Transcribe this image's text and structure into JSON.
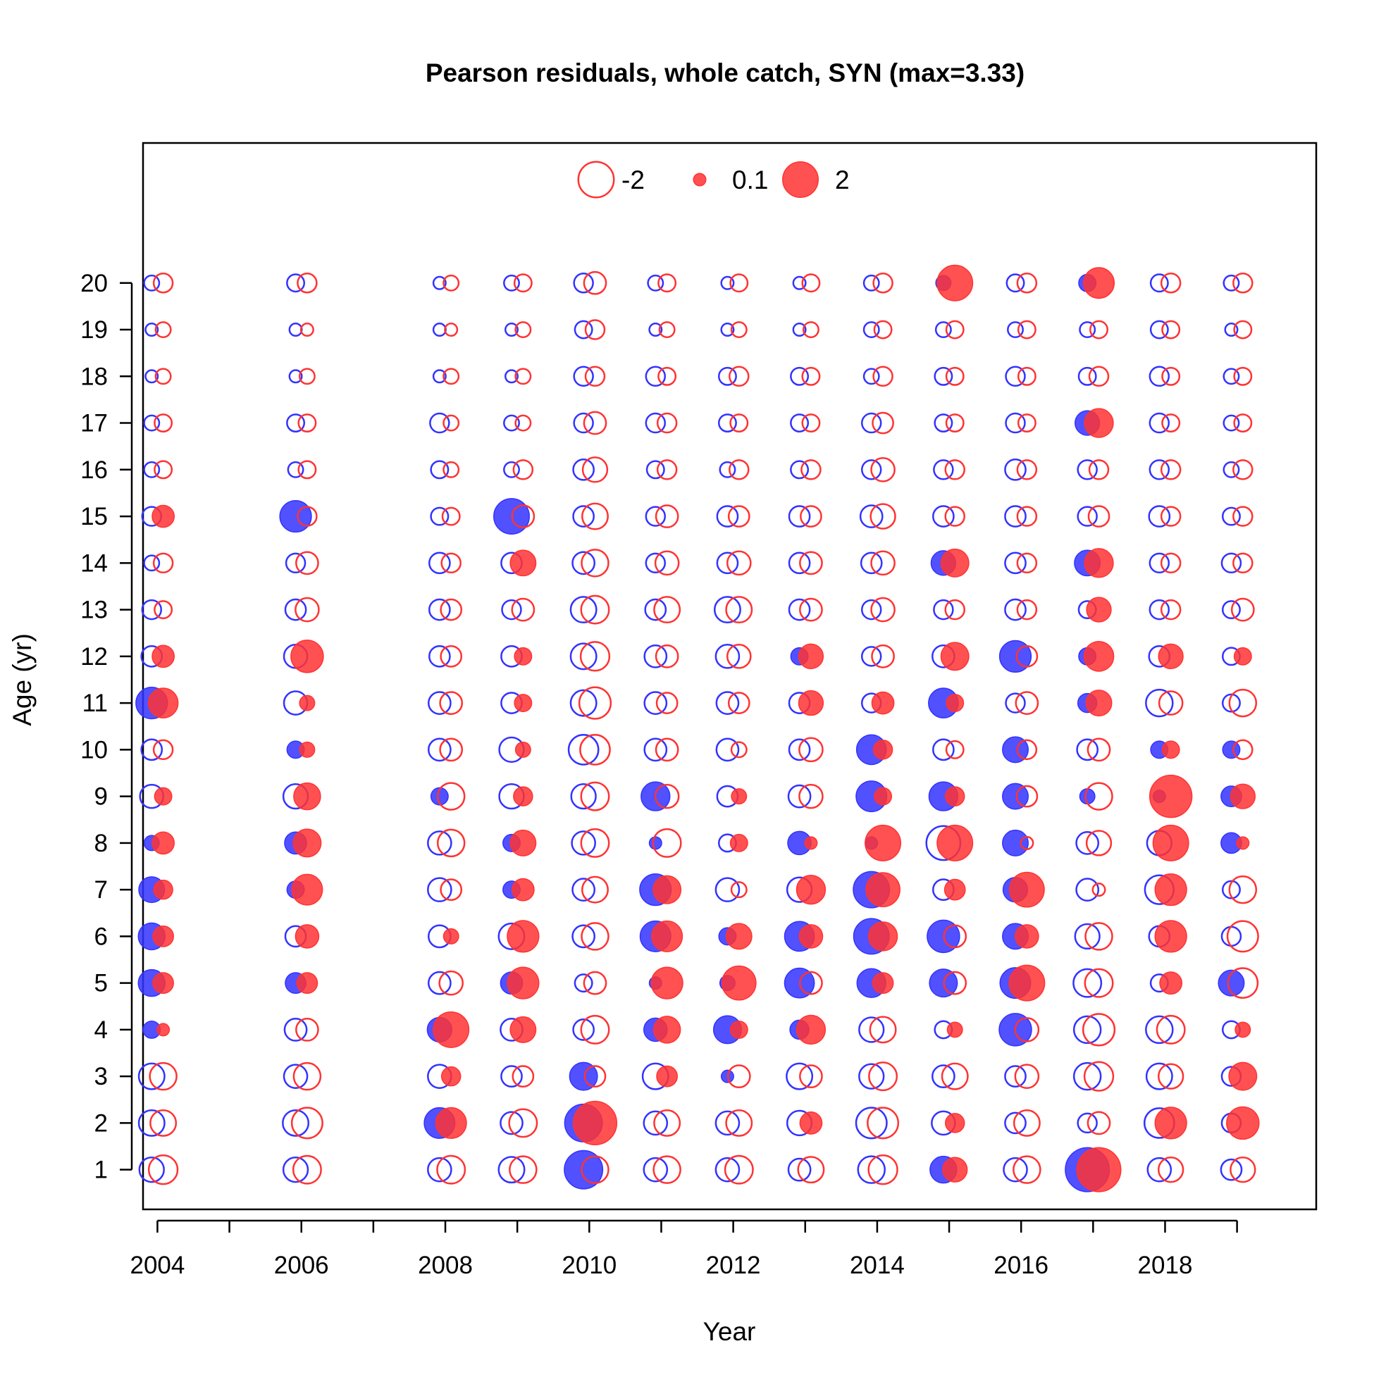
{
  "chart_data": {
    "type": "scatter",
    "subtype": "bubble",
    "title": "Pearson residuals, whole catch, SYN (max=3.33)",
    "xlabel": "Year",
    "ylabel": "Age (yr)",
    "xlim": [
      2003.8,
      2020.1
    ],
    "ylim": [
      0.15,
      23.0
    ],
    "x_ticks": [
      2004,
      2005,
      2006,
      2007,
      2008,
      2009,
      2010,
      2011,
      2012,
      2013,
      2014,
      2015,
      2016,
      2017,
      2018,
      2019
    ],
    "x_tick_labels": [
      "2004",
      "",
      "2006",
      "",
      "2008",
      "",
      "2010",
      "",
      "2012",
      "",
      "2014",
      "",
      "2016",
      "",
      "2018",
      ""
    ],
    "y_ticks": [
      1,
      2,
      3,
      4,
      5,
      6,
      7,
      8,
      9,
      10,
      11,
      12,
      13,
      14,
      15,
      16,
      17,
      18,
      19,
      20
    ],
    "grid": false,
    "max_residual": 3.33,
    "legend": {
      "placement": "top-center",
      "entries": [
        {
          "label": "-2",
          "value": -2,
          "filled": false
        },
        {
          "label": "0.1",
          "value": 0.1,
          "filled": true
        },
        {
          "label": "2",
          "value": 2,
          "filled": true
        }
      ]
    },
    "colors": {
      "observed": "#3333ff",
      "model": "#ff3333"
    },
    "years": [
      2004,
      2006,
      2008,
      2009,
      2010,
      2011,
      2012,
      2013,
      2014,
      2015,
      2016,
      2017,
      2018,
      2019
    ],
    "ages": [
      1,
      2,
      3,
      4,
      5,
      6,
      7,
      8,
      9,
      10,
      11,
      12,
      13,
      14,
      15,
      16,
      17,
      18,
      19,
      20
    ],
    "series": [
      {
        "name": "observed",
        "x_offset": -0.08,
        "residuals": [
          [
            -0.8,
            -0.9,
            -0.9,
            0.3,
            1.0,
            1.0,
            0.9,
            0.2,
            -0.7,
            -0.5,
            1.5,
            -0.5,
            -0.4,
            -0.2,
            -0.4,
            -0.2,
            -0.2,
            -0.1,
            -0.1,
            -0.2
          ],
          [
            -0.8,
            -0.9,
            -0.7,
            -0.6,
            0.5,
            -0.5,
            0.3,
            0.6,
            -0.8,
            0.3,
            -0.7,
            -0.7,
            -0.5,
            -0.4,
            1.5,
            -0.2,
            -0.3,
            -0.1,
            -0.1,
            -0.3
          ],
          [
            -0.7,
            1.4,
            -0.7,
            0.8,
            -0.6,
            -0.6,
            -0.7,
            -0.7,
            0.3,
            -0.6,
            -0.6,
            -0.5,
            -0.5,
            -0.5,
            -0.3,
            -0.3,
            -0.4,
            -0.1,
            -0.1,
            -0.1
          ],
          [
            -0.9,
            -0.6,
            -0.5,
            -0.6,
            0.6,
            -0.9,
            0.3,
            0.3,
            -0.8,
            -0.8,
            -0.5,
            -0.5,
            -0.4,
            -0.5,
            2.0,
            -0.2,
            -0.2,
            -0.1,
            -0.1,
            -0.2
          ],
          [
            2.4,
            2.3,
            1.1,
            -0.5,
            -0.3,
            -0.6,
            -0.6,
            -0.7,
            -0.8,
            -1.3,
            -0.9,
            -0.9,
            -0.9,
            -0.6,
            -0.5,
            -0.5,
            -0.4,
            -0.4,
            -0.3,
            -0.4
          ],
          [
            -0.7,
            -0.7,
            -0.9,
            0.7,
            0.1,
            1.4,
            1.5,
            0.1,
            1.2,
            -0.6,
            -0.6,
            -0.6,
            -0.5,
            -0.4,
            -0.4,
            -0.3,
            -0.4,
            -0.4,
            -0.1,
            -0.2
          ],
          [
            -0.7,
            -0.7,
            0.1,
            1.1,
            0.2,
            0.3,
            -0.7,
            -0.3,
            -0.5,
            -0.6,
            -0.6,
            -0.7,
            -0.9,
            -0.5,
            -0.5,
            -0.2,
            -0.3,
            -0.3,
            -0.1,
            -0.1
          ],
          [
            -0.6,
            -0.8,
            -0.9,
            0.4,
            1.3,
            1.3,
            -0.8,
            0.7,
            -0.6,
            -0.5,
            -0.5,
            0.3,
            -0.5,
            -0.5,
            -0.5,
            -0.3,
            -0.3,
            -0.3,
            -0.1,
            -0.1
          ],
          [
            -1.0,
            -1.4,
            -0.8,
            -0.8,
            1.2,
            2.0,
            2.1,
            0.1,
            1.4,
            1.3,
            -0.4,
            -0.4,
            -0.4,
            -0.5,
            -0.6,
            -0.4,
            -0.4,
            -0.2,
            -0.2,
            -0.2
          ],
          [
            1.0,
            -0.7,
            -0.6,
            -0.3,
            1.1,
            1.6,
            -0.5,
            -1.8,
            1.2,
            -0.5,
            1.3,
            -0.6,
            -0.4,
            0.8,
            -0.5,
            -0.4,
            -0.3,
            -0.3,
            -0.2,
            0.2
          ],
          [
            -0.7,
            -0.5,
            -0.5,
            1.6,
            1.4,
            0.9,
            0.8,
            0.9,
            0.9,
            0.9,
            -0.4,
            1.5,
            -0.5,
            -0.5,
            -0.5,
            -0.5,
            -0.4,
            -0.4,
            -0.2,
            -0.3
          ],
          [
            3.3,
            -0.4,
            -1.0,
            -1.0,
            -1.1,
            -0.8,
            -0.6,
            -0.6,
            0.2,
            -0.5,
            0.4,
            0.3,
            -0.3,
            0.9,
            -0.4,
            -0.4,
            0.8,
            -0.3,
            -0.2,
            0.3
          ],
          [
            -0.7,
            -1.3,
            -0.9,
            -1.0,
            -0.3,
            -0.5,
            -1.2,
            -0.8,
            0.1,
            0.3,
            -1.0,
            -0.5,
            -0.4,
            -0.4,
            -0.5,
            -0.4,
            -0.4,
            -0.4,
            -0.3,
            -0.3
          ],
          [
            -0.5,
            -0.4,
            -0.4,
            -0.3,
            0.9,
            -0.4,
            -0.3,
            0.5,
            0.5,
            0.3,
            -0.3,
            -0.3,
            -0.3,
            -0.4,
            -0.3,
            -0.2,
            -0.2,
            -0.2,
            -0.1,
            -0.2
          ]
        ]
      },
      {
        "name": "model",
        "x_offset": 0.08,
        "residuals": [
          [
            -1.2,
            -0.9,
            -1.0,
            0.1,
            0.5,
            0.5,
            0.4,
            0.6,
            0.3,
            -0.4,
            1.3,
            0.6,
            -0.3,
            -0.4,
            0.6,
            -0.3,
            -0.3,
            -0.2,
            -0.2,
            -0.4
          ],
          [
            -1.1,
            -1.4,
            -1.0,
            -0.6,
            0.5,
            0.7,
            1.4,
            1.1,
            1.0,
            0.2,
            0.2,
            1.6,
            -0.7,
            -0.6,
            -0.4,
            -0.3,
            -0.3,
            -0.2,
            -0.1,
            -0.4
          ],
          [
            -1.1,
            1.4,
            0.4,
            2.0,
            -0.7,
            0.2,
            -0.5,
            -1.0,
            -1.0,
            -0.6,
            -0.6,
            -0.5,
            -0.5,
            -0.4,
            -0.3,
            -0.2,
            -0.2,
            -0.2,
            -0.1,
            -0.2
          ],
          [
            -1.0,
            -1.1,
            -0.5,
            0.9,
            1.5,
            1.5,
            0.6,
            0.9,
            0.4,
            0.2,
            0.3,
            0.3,
            -0.6,
            0.9,
            -0.6,
            -0.4,
            -0.2,
            -0.2,
            -0.2,
            -0.3
          ],
          [
            -1.0,
            3.2,
            -0.5,
            -1.1,
            -0.6,
            -1.0,
            -0.9,
            -1.1,
            -1.1,
            -1.3,
            -1.5,
            -1.2,
            -1.1,
            -1.0,
            -0.9,
            -0.8,
            -0.6,
            -0.4,
            -0.4,
            -0.6
          ],
          [
            -1.0,
            -0.9,
            0.5,
            1.0,
            1.5,
            1.4,
            1.1,
            -1.1,
            -0.7,
            -0.6,
            -0.5,
            -0.6,
            -0.9,
            -0.7,
            -0.6,
            -0.4,
            -0.4,
            -0.3,
            -0.2,
            -0.3
          ],
          [
            -1.1,
            -0.9,
            -0.6,
            0.3,
            1.8,
            0.9,
            -0.2,
            0.3,
            0.2,
            -0.2,
            -0.5,
            -0.7,
            -0.9,
            -0.7,
            -0.5,
            -0.4,
            -0.3,
            -0.4,
            -0.2,
            -0.3
          ],
          [
            -0.9,
            0.6,
            -0.6,
            1.2,
            -0.6,
            0.7,
            1.2,
            0.1,
            -0.7,
            -0.7,
            0.8,
            0.8,
            -0.6,
            -0.6,
            -0.5,
            -0.4,
            -0.3,
            -0.3,
            -0.2,
            -0.3
          ],
          [
            -1.2,
            -1.4,
            -1.1,
            -0.9,
            0.5,
            1.2,
            1.8,
            2.0,
            0.3,
            0.4,
            0.6,
            -0.6,
            -0.7,
            -0.7,
            -0.8,
            -0.7,
            -0.5,
            -0.4,
            -0.3,
            -0.4
          ],
          [
            0.8,
            0.4,
            -0.9,
            0.2,
            -0.6,
            -0.6,
            0.5,
            2.0,
            0.4,
            -0.3,
            0.3,
            1.1,
            -0.4,
            1.1,
            -0.4,
            -0.4,
            -0.3,
            -0.3,
            -0.3,
            2.0
          ],
          [
            -1.0,
            -0.9,
            -0.7,
            -0.7,
            2.0,
            0.7,
            1.9,
            -0.1,
            -0.5,
            -0.4,
            -0.6,
            -0.5,
            -0.4,
            -0.4,
            -0.4,
            -0.4,
            -0.3,
            -0.3,
            -0.3,
            -0.4
          ],
          [
            3.3,
            -0.6,
            -1.2,
            -1.5,
            -1.1,
            -1.0,
            -0.1,
            -0.8,
            -1.0,
            -0.6,
            0.9,
            1.3,
            0.8,
            1.2,
            -0.5,
            -0.4,
            1.2,
            -0.4,
            -0.3,
            1.4
          ],
          [
            -0.8,
            1.5,
            -0.8,
            -1.1,
            0.6,
            1.5,
            1.5,
            2.0,
            3.0,
            0.3,
            -0.7,
            0.8,
            -0.4,
            -0.4,
            -0.4,
            -0.4,
            -0.3,
            -0.3,
            -0.3,
            -0.4
          ],
          [
            -0.8,
            1.6,
            1.1,
            0.2,
            -1.3,
            -1.4,
            -1.0,
            0.1,
            0.8,
            -0.4,
            -1.0,
            0.3,
            -0.6,
            -0.4,
            -0.4,
            -0.4,
            -0.3,
            -0.3,
            -0.3,
            -0.4
          ]
        ]
      }
    ]
  }
}
